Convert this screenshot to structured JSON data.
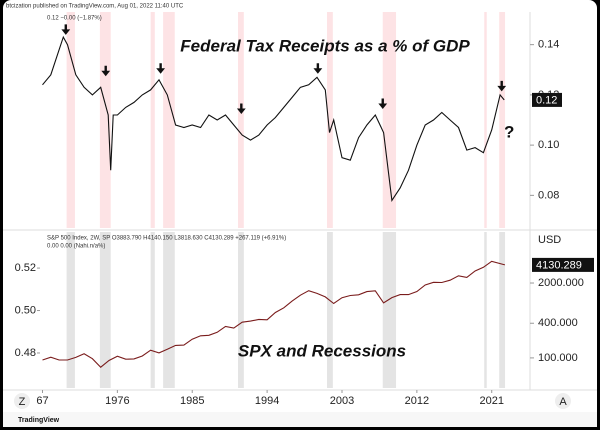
{
  "page": {
    "publisher": "btcization published on TradingView.com, Aug 01, 2022 11:40 UTC",
    "footer": "TradingView",
    "left_button": "Z",
    "right_button": "A"
  },
  "chart_data": [
    {
      "type": "line",
      "header": "0.12 −0.00 (−1.87%)",
      "title": "Federal Tax Receipts as a % of GDP",
      "annotation": "?",
      "last_label": "0.12",
      "color": "#111111",
      "band_color": "#fde3e5",
      "xlim": [
        1966.7,
        2025.6
      ],
      "ylim": [
        0.067,
        0.153
      ],
      "yticks": [
        0.08,
        {
          "value": 0.1,
          "label": "0.10"
        },
        0.12,
        0.14
      ],
      "x": [
        1967,
        1968,
        1969.5,
        1970,
        1971,
        1972,
        1973,
        1974,
        1974.9,
        1975.2,
        1975.5,
        1976,
        1977,
        1978,
        1979,
        1980,
        1981,
        1982,
        1983,
        1984,
        1985,
        1986,
        1987,
        1988,
        1989,
        1990,
        1991,
        1992,
        1993,
        1994,
        1995,
        1996,
        1997,
        1998,
        1999,
        2000,
        2001,
        2001.5,
        2002,
        2003,
        2004,
        2005,
        2006,
        2007,
        2008,
        2009,
        2010,
        2011,
        2012,
        2013,
        2014,
        2015,
        2016,
        2017,
        2018,
        2019,
        2020,
        2021,
        2022,
        2022.5
      ],
      "values": [
        0.124,
        0.128,
        0.143,
        0.14,
        0.128,
        0.123,
        0.12,
        0.123,
        0.112,
        0.09,
        0.112,
        0.112,
        0.115,
        0.117,
        0.12,
        0.122,
        0.126,
        0.12,
        0.108,
        0.107,
        0.108,
        0.107,
        0.112,
        0.11,
        0.112,
        0.108,
        0.104,
        0.102,
        0.104,
        0.108,
        0.111,
        0.115,
        0.119,
        0.123,
        0.124,
        0.127,
        0.122,
        0.105,
        0.11,
        0.095,
        0.094,
        0.103,
        0.108,
        0.112,
        0.105,
        0.078,
        0.083,
        0.09,
        0.1,
        0.108,
        0.11,
        0.113,
        0.11,
        0.107,
        0.098,
        0.099,
        0.097,
        0.106,
        0.12,
        0.118
      ],
      "recessions": [
        [
          1969.9,
          1970.9
        ],
        [
          1973.9,
          1975.2
        ],
        [
          1980,
          1980.5
        ],
        [
          1981.5,
          1982.9
        ],
        [
          1990.5,
          1991.2
        ],
        [
          2001.2,
          2001.9
        ],
        [
          2007.9,
          2009.5
        ],
        [
          2020.1,
          2020.4
        ],
        [
          2021.9,
          2022.6
        ]
      ],
      "arrows": [
        [
          1969.8,
          0.1445
        ],
        [
          1974.6,
          0.128
        ],
        [
          1981.2,
          0.129
        ],
        [
          1990.9,
          0.113
        ],
        [
          2000.1,
          0.129
        ],
        [
          2007.9,
          0.115
        ],
        [
          2022.2,
          0.122
        ]
      ]
    },
    {
      "type": "line",
      "header": "S&P 500 Index, 2W, SP  O3883.790  H4140.150  L3818.630  C4130.289  +267.119 (+6.91%)",
      "subheader": "0.00  0.00 (Nahi.n/a%)",
      "title": "SPX and Recessions",
      "unit": "USD",
      "last_label": "4130.289",
      "color": "#7a1c1c",
      "band_color": "#e4e4e4",
      "log_scale": true,
      "xlim": [
        1966.7,
        2025.6
      ],
      "ylim": [
        30,
        15400
      ],
      "xticks": [
        {
          "value": 1967,
          "label": "67"
        },
        1976,
        1985,
        1994,
        2003,
        2012,
        2021
      ],
      "yticks": [
        {
          "value": 100,
          "label": "100.000"
        },
        {
          "value": 400,
          "label": "400.000"
        },
        {
          "value": 2000,
          "label": "2000.000"
        }
      ],
      "y2lim": [
        0.4635,
        0.537
      ],
      "y2ticks": [
        0.48,
        {
          "value": 0.5,
          "label": "0.50"
        },
        0.52
      ],
      "x": [
        1967,
        1968,
        1969,
        1970,
        1971,
        1972,
        1973,
        1974,
        1975,
        1976,
        1977,
        1978,
        1979,
        1980,
        1981,
        1982,
        1983,
        1984,
        1985,
        1986,
        1987,
        1988,
        1989,
        1990,
        1991,
        1992,
        1993,
        1994,
        1995,
        1996,
        1997,
        1998,
        1999,
        2000,
        2001,
        2002,
        2003,
        2004,
        2005,
        2006,
        2007,
        2008,
        2009,
        2010,
        2011,
        2012,
        2013,
        2014,
        2015,
        2016,
        2017,
        2018,
        2019,
        2020,
        2021,
        2022.58
      ],
      "values": [
        92,
        103,
        92,
        92,
        102,
        118,
        97,
        69,
        90,
        107,
        95,
        96,
        108,
        136,
        122,
        141,
        165,
        167,
        211,
        242,
        247,
        278,
        353,
        330,
        417,
        436,
        466,
        459,
        616,
        741,
        970,
        1229,
        1469,
        1320,
        1148,
        880,
        1112,
        1212,
        1248,
        1418,
        1468,
        903,
        1115,
        1258,
        1258,
        1426,
        1848,
        2059,
        2044,
        2239,
        2674,
        2507,
        3231,
        3756,
        4766,
        4130
      ],
      "recessions": [
        [
          1969.9,
          1970.9
        ],
        [
          1973.9,
          1975.2
        ],
        [
          1980,
          1980.5
        ],
        [
          1981.5,
          1982.9
        ],
        [
          1990.5,
          1991.2
        ],
        [
          2001.2,
          2001.9
        ],
        [
          2007.9,
          2009.5
        ],
        [
          2020.1,
          2020.4
        ],
        [
          2021.9,
          2022.6
        ]
      ]
    }
  ]
}
